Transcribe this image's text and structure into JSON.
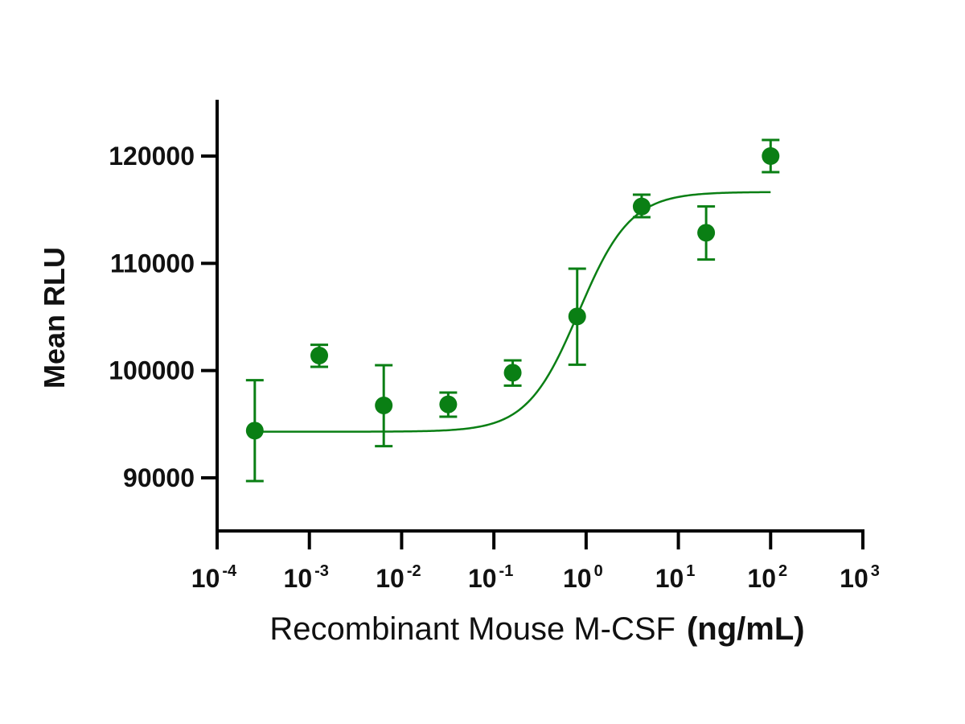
{
  "chart_data": {
    "type": "scatter",
    "title": "",
    "xlabel": "Recombinant Mouse M-CSF",
    "xlabel_unit": "(ng/mL)",
    "ylabel": "Mean RLU",
    "xscale": "log10",
    "xlim": [
      0.0001,
      1000
    ],
    "ylim": [
      85000,
      125000
    ],
    "x_ticks": [
      {
        "value": 0.0001,
        "base": "10",
        "exp": "-4"
      },
      {
        "value": 0.001,
        "base": "10",
        "exp": "-3"
      },
      {
        "value": 0.01,
        "base": "10",
        "exp": "-2"
      },
      {
        "value": 0.1,
        "base": "10",
        "exp": "-1"
      },
      {
        "value": 1,
        "base": "10",
        "exp": "0"
      },
      {
        "value": 10,
        "base": "10",
        "exp": "1"
      },
      {
        "value": 100,
        "base": "10",
        "exp": "2"
      },
      {
        "value": 1000,
        "base": "10",
        "exp": "3"
      }
    ],
    "y_ticks": [
      {
        "value": 90000,
        "label": "90000"
      },
      {
        "value": 100000,
        "label": "100000"
      },
      {
        "value": 110000,
        "label": "110000"
      },
      {
        "value": 120000,
        "label": "120000"
      }
    ],
    "grid": false,
    "legend": "none",
    "color": "#0a7f14",
    "series": [
      {
        "name": "Mean RLU",
        "points": [
          {
            "x": 0.000256,
            "y": 94400,
            "err_low": 89700,
            "err_high": 99100
          },
          {
            "x": 0.00128,
            "y": 101400,
            "err_low": 100350,
            "err_high": 102400
          },
          {
            "x": 0.0064,
            "y": 96750,
            "err_low": 92950,
            "err_high": 100500
          },
          {
            "x": 0.032,
            "y": 96850,
            "err_low": 95700,
            "err_high": 97950
          },
          {
            "x": 0.16,
            "y": 99800,
            "err_low": 98600,
            "err_high": 100950
          },
          {
            "x": 0.8,
            "y": 105050,
            "err_low": 100550,
            "err_high": 109500
          },
          {
            "x": 4,
            "y": 115300,
            "err_low": 114300,
            "err_high": 116400
          },
          {
            "x": 20,
            "y": 112850,
            "err_low": 110350,
            "err_high": 115300
          },
          {
            "x": 100,
            "y": 120000,
            "err_low": 118500,
            "err_high": 121500
          }
        ]
      }
    ],
    "fit": {
      "model": "4PL",
      "bottom": 94300,
      "top": 116650,
      "logEC50": -0.08,
      "hill": 1.55,
      "x_range": [
        0.000256,
        100
      ]
    }
  }
}
